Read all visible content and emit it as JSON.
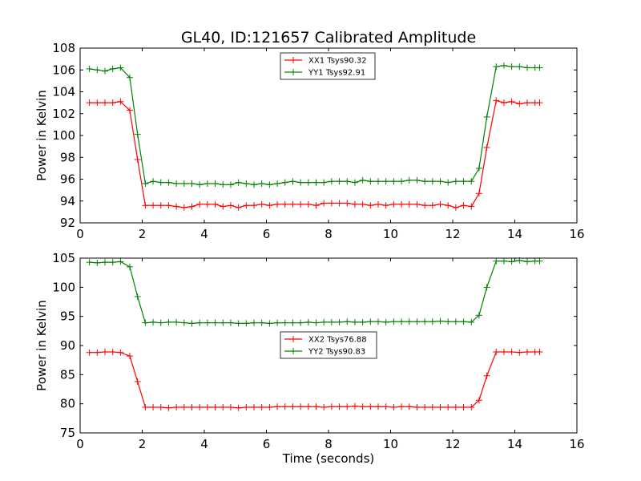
{
  "title": "GL40, ID:121657 Calibrated Amplitude",
  "chart_data": [
    {
      "type": "line",
      "xlabel": "",
      "ylabel": "Power in Kelvin",
      "xlim": [
        0,
        16
      ],
      "ylim": [
        92,
        108
      ],
      "xticks": [
        "0",
        "2",
        "4",
        "6",
        "8",
        "10",
        "12",
        "14",
        "16"
      ],
      "yticks": [
        "92",
        "94",
        "96",
        "98",
        "100",
        "102",
        "104",
        "106",
        "108"
      ],
      "grid": false,
      "legend_position": "top-center",
      "x": [
        0.3,
        0.55,
        0.8,
        1.05,
        1.3,
        1.6,
        1.85,
        2.1,
        2.35,
        2.6,
        2.85,
        3.1,
        3.35,
        3.6,
        3.85,
        4.1,
        4.35,
        4.6,
        4.85,
        5.1,
        5.35,
        5.6,
        5.85,
        6.1,
        6.35,
        6.6,
        6.85,
        7.1,
        7.35,
        7.6,
        7.85,
        8.1,
        8.35,
        8.6,
        8.85,
        9.1,
        9.35,
        9.6,
        9.85,
        10.1,
        10.35,
        10.6,
        10.85,
        11.1,
        11.35,
        11.6,
        11.85,
        12.1,
        12.35,
        12.6,
        12.85,
        13.1,
        13.4,
        13.65,
        13.9,
        14.15,
        14.4,
        14.65,
        14.8
      ],
      "series": [
        {
          "name": "XX1 Tsys90.32",
          "color": "#ff0000",
          "values": [
            103.0,
            103.0,
            103.0,
            103.0,
            103.1,
            102.3,
            97.8,
            93.6,
            93.6,
            93.6,
            93.6,
            93.5,
            93.4,
            93.5,
            93.7,
            93.7,
            93.7,
            93.5,
            93.6,
            93.4,
            93.6,
            93.6,
            93.7,
            93.6,
            93.7,
            93.7,
            93.7,
            93.7,
            93.7,
            93.6,
            93.8,
            93.8,
            93.8,
            93.8,
            93.7,
            93.7,
            93.6,
            93.7,
            93.6,
            93.7,
            93.7,
            93.7,
            93.7,
            93.6,
            93.6,
            93.7,
            93.6,
            93.4,
            93.6,
            93.5,
            94.7,
            98.9,
            103.2,
            103.0,
            103.1,
            102.9,
            103.0,
            103.0,
            103.0
          ]
        },
        {
          "name": "YY1 Tsys92.91",
          "color": "#008000",
          "values": [
            106.1,
            106.0,
            105.9,
            106.1,
            106.2,
            105.3,
            100.1,
            95.6,
            95.8,
            95.7,
            95.7,
            95.6,
            95.6,
            95.6,
            95.5,
            95.6,
            95.6,
            95.5,
            95.5,
            95.7,
            95.6,
            95.5,
            95.6,
            95.5,
            95.6,
            95.7,
            95.8,
            95.7,
            95.7,
            95.7,
            95.7,
            95.8,
            95.8,
            95.8,
            95.7,
            95.9,
            95.8,
            95.8,
            95.8,
            95.8,
            95.8,
            95.9,
            95.9,
            95.8,
            95.8,
            95.8,
            95.7,
            95.8,
            95.8,
            95.8,
            97.0,
            101.7,
            106.3,
            106.4,
            106.3,
            106.3,
            106.2,
            106.2,
            106.2
          ]
        }
      ]
    },
    {
      "type": "line",
      "xlabel": "Time (seconds)",
      "ylabel": "Power in Kelvin",
      "xlim": [
        0,
        16
      ],
      "ylim": [
        75,
        105
      ],
      "xticks": [
        "0",
        "2",
        "4",
        "6",
        "8",
        "10",
        "12",
        "14",
        "16"
      ],
      "yticks": [
        "75",
        "80",
        "85",
        "90",
        "95",
        "100",
        "105"
      ],
      "grid": false,
      "legend_position": "center",
      "x": [
        0.3,
        0.55,
        0.8,
        1.05,
        1.3,
        1.6,
        1.85,
        2.1,
        2.35,
        2.6,
        2.85,
        3.1,
        3.35,
        3.6,
        3.85,
        4.1,
        4.35,
        4.6,
        4.85,
        5.1,
        5.35,
        5.6,
        5.85,
        6.1,
        6.35,
        6.6,
        6.85,
        7.1,
        7.35,
        7.6,
        7.85,
        8.1,
        8.35,
        8.6,
        8.85,
        9.1,
        9.35,
        9.6,
        9.85,
        10.1,
        10.35,
        10.6,
        10.85,
        11.1,
        11.35,
        11.6,
        11.85,
        12.1,
        12.35,
        12.6,
        12.85,
        13.1,
        13.4,
        13.65,
        13.9,
        14.15,
        14.4,
        14.65,
        14.8
      ],
      "series": [
        {
          "name": "XX2 Tsys76.88",
          "color": "#ff0000",
          "values": [
            88.8,
            88.8,
            88.9,
            88.9,
            88.8,
            88.2,
            83.8,
            79.4,
            79.4,
            79.4,
            79.3,
            79.4,
            79.4,
            79.4,
            79.4,
            79.4,
            79.4,
            79.4,
            79.4,
            79.3,
            79.4,
            79.4,
            79.4,
            79.4,
            79.5,
            79.5,
            79.5,
            79.5,
            79.5,
            79.5,
            79.4,
            79.5,
            79.5,
            79.5,
            79.6,
            79.5,
            79.5,
            79.5,
            79.5,
            79.4,
            79.5,
            79.5,
            79.4,
            79.4,
            79.4,
            79.4,
            79.4,
            79.4,
            79.4,
            79.4,
            80.6,
            84.8,
            88.9,
            88.9,
            88.9,
            88.8,
            88.9,
            88.9,
            88.9
          ]
        },
        {
          "name": "YY2 Tsys90.83",
          "color": "#008000",
          "values": [
            104.3,
            104.2,
            104.3,
            104.3,
            104.4,
            103.5,
            98.4,
            93.9,
            94.0,
            93.9,
            94.0,
            94.0,
            93.9,
            93.8,
            93.9,
            93.9,
            93.9,
            93.9,
            93.9,
            93.8,
            93.8,
            93.9,
            93.9,
            93.8,
            93.9,
            93.9,
            93.9,
            93.9,
            94.0,
            93.9,
            94.0,
            94.0,
            94.0,
            94.1,
            94.0,
            94.0,
            94.1,
            94.1,
            94.0,
            94.1,
            94.1,
            94.1,
            94.1,
            94.1,
            94.1,
            94.2,
            94.1,
            94.1,
            94.1,
            94.0,
            95.2,
            100.0,
            104.5,
            104.5,
            104.4,
            104.6,
            104.4,
            104.5,
            104.5
          ]
        }
      ]
    }
  ]
}
